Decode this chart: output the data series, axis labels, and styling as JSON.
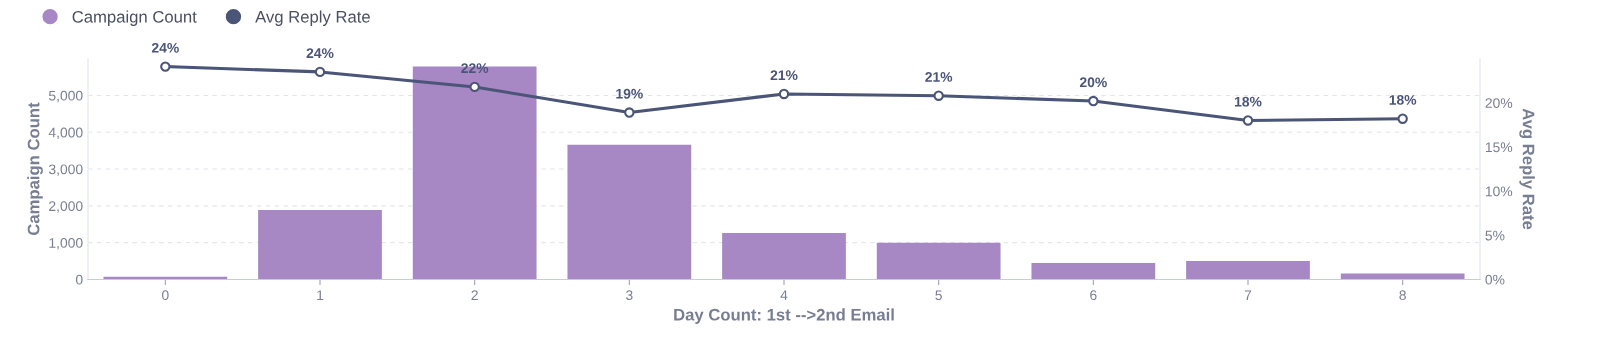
{
  "chart_data": {
    "type": "bar",
    "xlabel": "Day Count: 1st -->2nd Email",
    "ylabel": "Campaign Count",
    "y2label": "Avg Reply Rate",
    "categories": [
      "0",
      "1",
      "2",
      "3",
      "4",
      "5",
      "6",
      "7",
      "8"
    ],
    "series": [
      {
        "name": "Campaign Count",
        "color": "#a788c5",
        "values": [
          70,
          1890,
          5790,
          3660,
          1260,
          1000,
          450,
          500,
          160
        ]
      },
      {
        "name": "Avg Reply Rate",
        "type": "line",
        "axis": "y2",
        "color": "#4a5578",
        "marker": "circle",
        "values": [
          24.1,
          23.5,
          21.8,
          18.9,
          21.0,
          20.8,
          20.2,
          18.0,
          18.2
        ],
        "value_labels": [
          "24%",
          "24%",
          "22%",
          "19%",
          "21%",
          "21%",
          "20%",
          "18%",
          "18%"
        ]
      }
    ],
    "ylim": [
      0,
      6000
    ],
    "yticks": [
      {
        "value": 0,
        "label": "0"
      },
      {
        "value": 1000,
        "label": "1,000"
      },
      {
        "value": 2000,
        "label": "2,000"
      },
      {
        "value": 3000,
        "label": "3,000"
      },
      {
        "value": 4000,
        "label": "4,000"
      },
      {
        "value": 5000,
        "label": "5,000"
      }
    ],
    "y2lim": [
      0,
      25
    ],
    "y2ticks": [
      {
        "value": 0,
        "label": "0%"
      },
      {
        "value": 5,
        "label": "5%"
      },
      {
        "value": 10,
        "label": "10%"
      },
      {
        "value": 15,
        "label": "15%"
      },
      {
        "value": 20,
        "label": "20%"
      }
    ],
    "grid": "y",
    "legend": "top left"
  }
}
